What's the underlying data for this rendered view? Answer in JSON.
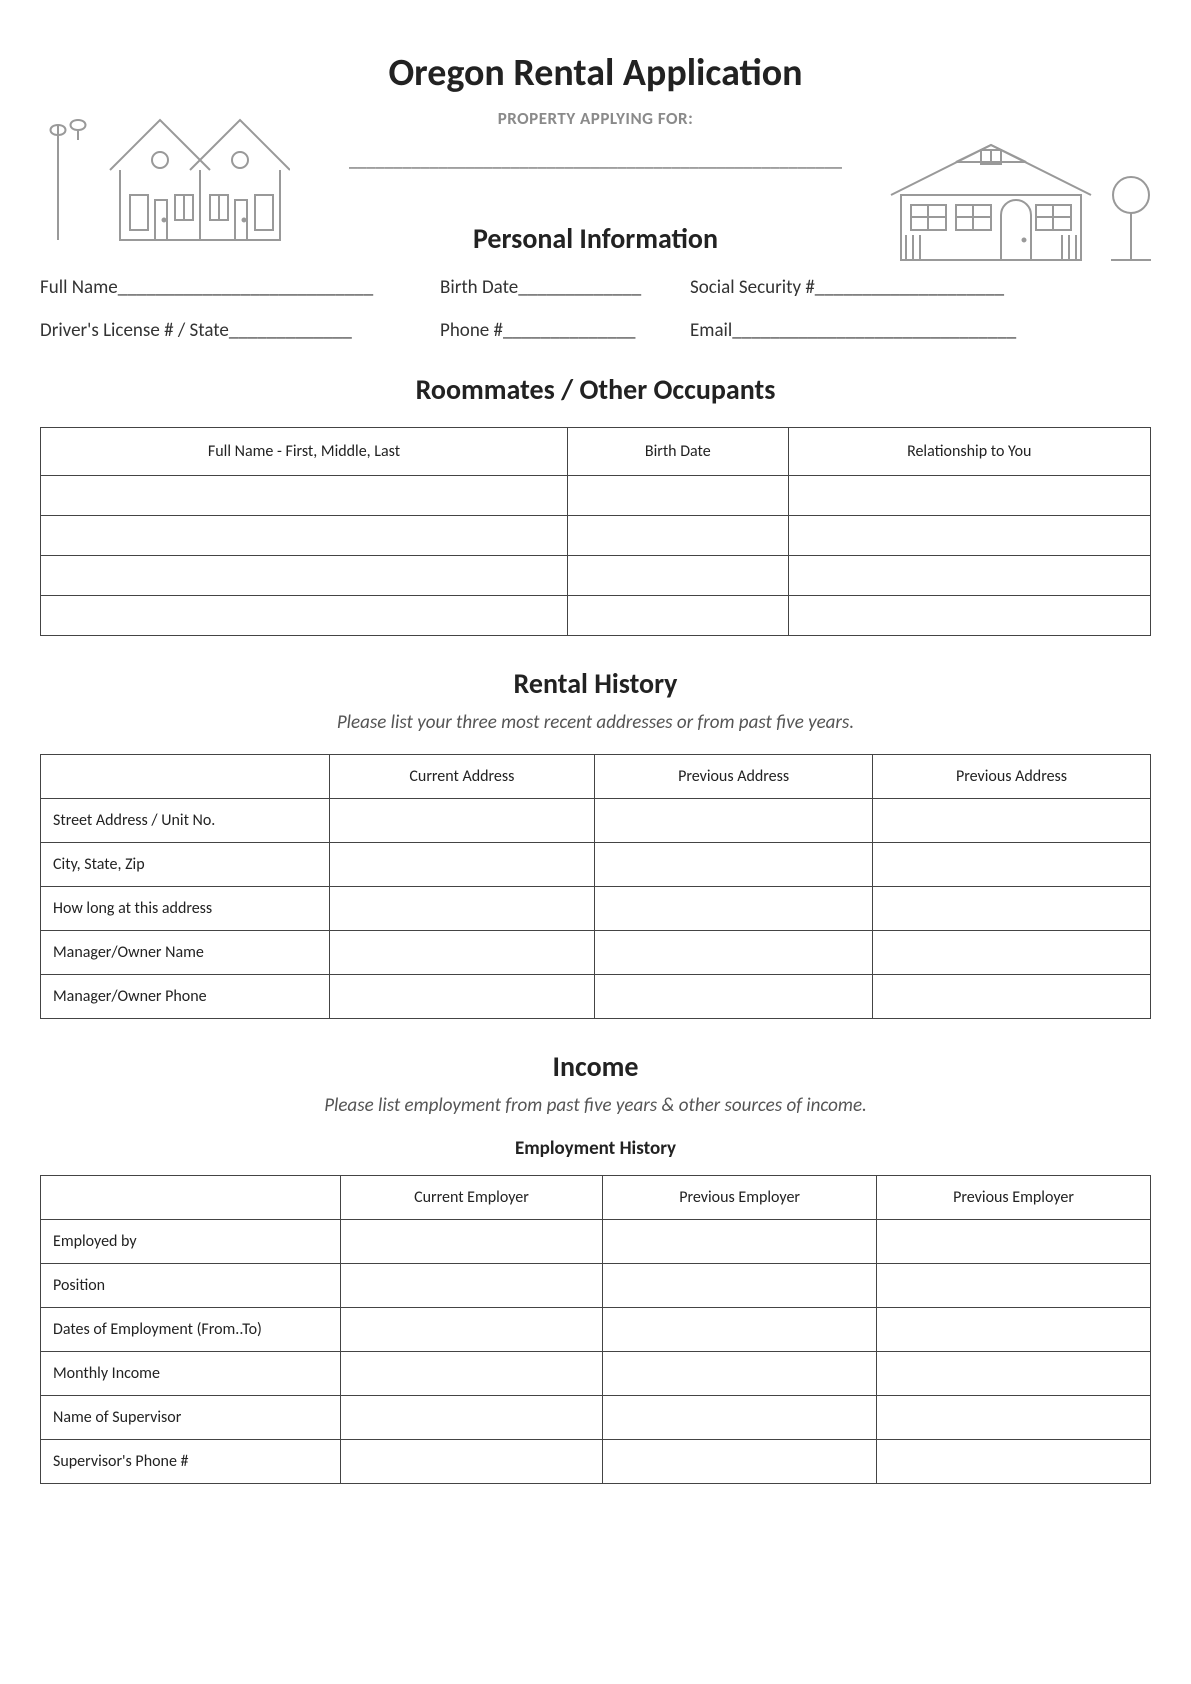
{
  "title": "Oregon Rental Application",
  "property_label": "PROPERTY APPLYING FOR:",
  "property_line": "_______________________________________________________",
  "sections": {
    "personal": {
      "heading": "Personal Information",
      "row1": {
        "full_name": "Full Name___________________________",
        "birth_date": "Birth Date_____________",
        "ssn": "Social Security #____________________"
      },
      "row2": {
        "dl": "Driver's License # / State_____________",
        "phone": "Phone #______________",
        "email": "Email______________________________"
      }
    },
    "roommates": {
      "heading": "Roommates / Other Occupants",
      "columns": [
        "Full Name - First, Middle, Last",
        "Birth Date",
        "Relationship to You"
      ],
      "row_count": 4
    },
    "rental": {
      "heading": "Rental History",
      "subtext": "Please list your three most recent addresses or from past five years.",
      "columns": [
        "",
        "Current Address",
        "Previous Address",
        "Previous Address"
      ],
      "rows": [
        "Street Address / Unit No.",
        "City, State, Zip",
        "How long at this address",
        "Manager/Owner Name",
        "Manager/Owner Phone"
      ]
    },
    "income": {
      "heading": "Income",
      "subtext": "Please list employment from past five years & other sources of income.",
      "emp_heading": "Employment History",
      "columns": [
        "",
        "Current Employer",
        "Previous Employer",
        "Previous Employer"
      ],
      "rows": [
        "Employed by",
        "Position",
        "Dates of Employment (From..To)",
        "Monthly Income",
        "Name of Supervisor",
        "Supervisor's Phone #"
      ]
    }
  }
}
